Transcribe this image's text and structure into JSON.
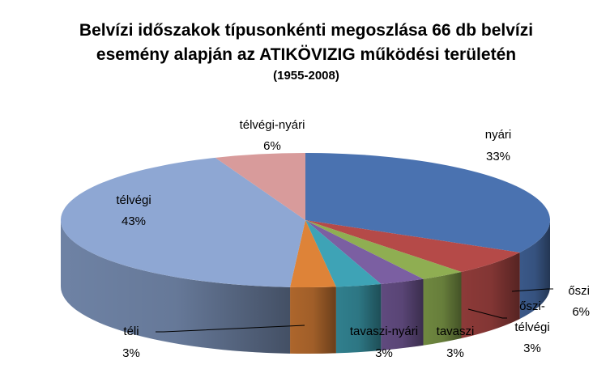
{
  "chart_data": {
    "type": "pie",
    "title": "Belvízi időszakok típusonkénti megoszlása 66 db belvízi esemény alapján az ATIKÖVIZIG működési területén",
    "title_lines": [
      "Belvízi időszakok típusonkénti megoszlása 66 db belvízi",
      "esemény alapján az ATIKÖVIZIG működési területén"
    ],
    "subtitle": "(1955-2008)",
    "legend": "none",
    "three_d": true,
    "slices": [
      {
        "label": "nyári",
        "value": 33,
        "pct": "33%",
        "color": "#4a72b0"
      },
      {
        "label": "őszi",
        "value": 6,
        "pct": "6%",
        "color": "#b54a48"
      },
      {
        "label": "őszi-télvégi",
        "label_lines": [
          "őszi-",
          "télvégi"
        ],
        "value": 3,
        "pct": "3%",
        "color": "#8fae52"
      },
      {
        "label": "tavaszi",
        "value": 3,
        "pct": "3%",
        "color": "#7b5fa2"
      },
      {
        "label": "tavaszi-nyári",
        "value": 3,
        "pct": "3%",
        "color": "#3ea3b6"
      },
      {
        "label": "téli",
        "value": 3,
        "pct": "3%",
        "color": "#de8338"
      },
      {
        "label": "télvégi",
        "value": 43,
        "pct": "43%",
        "color": "#8ea7d3"
      },
      {
        "label": "télvégi-nyári",
        "value": 6,
        "pct": "6%",
        "color": "#d89b9b"
      }
    ]
  }
}
